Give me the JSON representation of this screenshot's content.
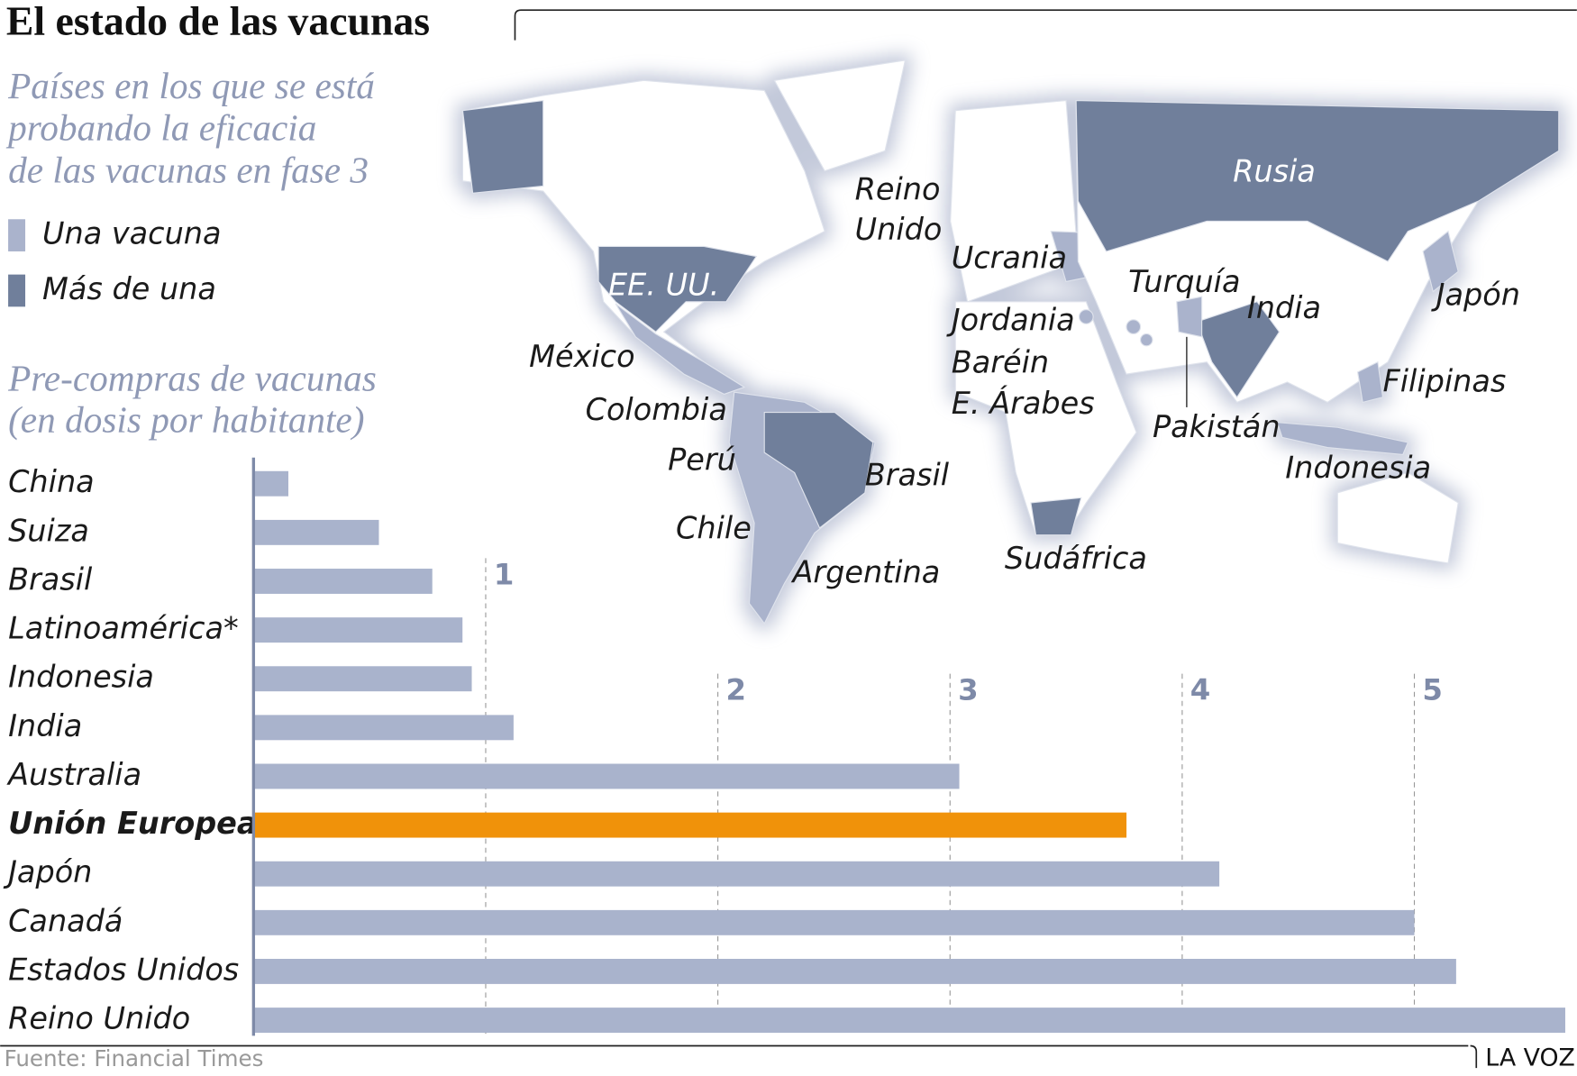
{
  "header": {
    "title": "El estado de las vacunas"
  },
  "map": {
    "subtitle": [
      "Países en los que se está",
      "probando la eficacia",
      "de las vacunas en fase 3"
    ],
    "legend": [
      {
        "label": "Una vacuna",
        "color": "#aab3cc"
      },
      {
        "label": "Más de una",
        "color": "#707f9b"
      }
    ],
    "labels": [
      "Rusia",
      "EE. UU.",
      "Reino",
      "Unido",
      "Ucrania",
      "Turquía",
      "India",
      "Japón",
      "Jordania",
      "Baréin",
      "E. Árabes",
      "México",
      "Colombia",
      "Perú",
      "Brasil",
      "Chile",
      "Argentina",
      "Sudáfrica",
      "Pakistán",
      "Filipinas",
      "Indonesia"
    ]
  },
  "chart_data": {
    "type": "bar",
    "title": [
      "Pre-compras de vacunas",
      "(en dosis por habitante)"
    ],
    "categories": [
      "China",
      "Suiza",
      "Brasil",
      "Latinoamérica*",
      "Indonesia",
      "India",
      "Australia",
      "Unión Europea",
      "Japón",
      "Canadá",
      "Estados Unidos",
      "Reino Unido"
    ],
    "values": [
      0.15,
      0.54,
      0.77,
      0.9,
      0.94,
      1.12,
      3.04,
      3.76,
      4.16,
      5.0,
      5.18,
      5.65
    ],
    "color": "#a9b3cc",
    "colors": [
      "#a9b3cc",
      "#a9b3cc",
      "#a9b3cc",
      "#a9b3cc",
      "#a9b3cc",
      "#a9b3cc",
      "#a9b3cc",
      "#f0920a",
      "#a9b3cc",
      "#a9b3cc",
      "#a9b3cc",
      "#a9b3cc"
    ],
    "xlim": [
      0,
      5.7
    ],
    "xticks": [
      1,
      2,
      3,
      4,
      5
    ],
    "grid": true
  },
  "footer": {
    "source": "Fuente: Financial Times",
    "brand": "LA VOZ"
  }
}
